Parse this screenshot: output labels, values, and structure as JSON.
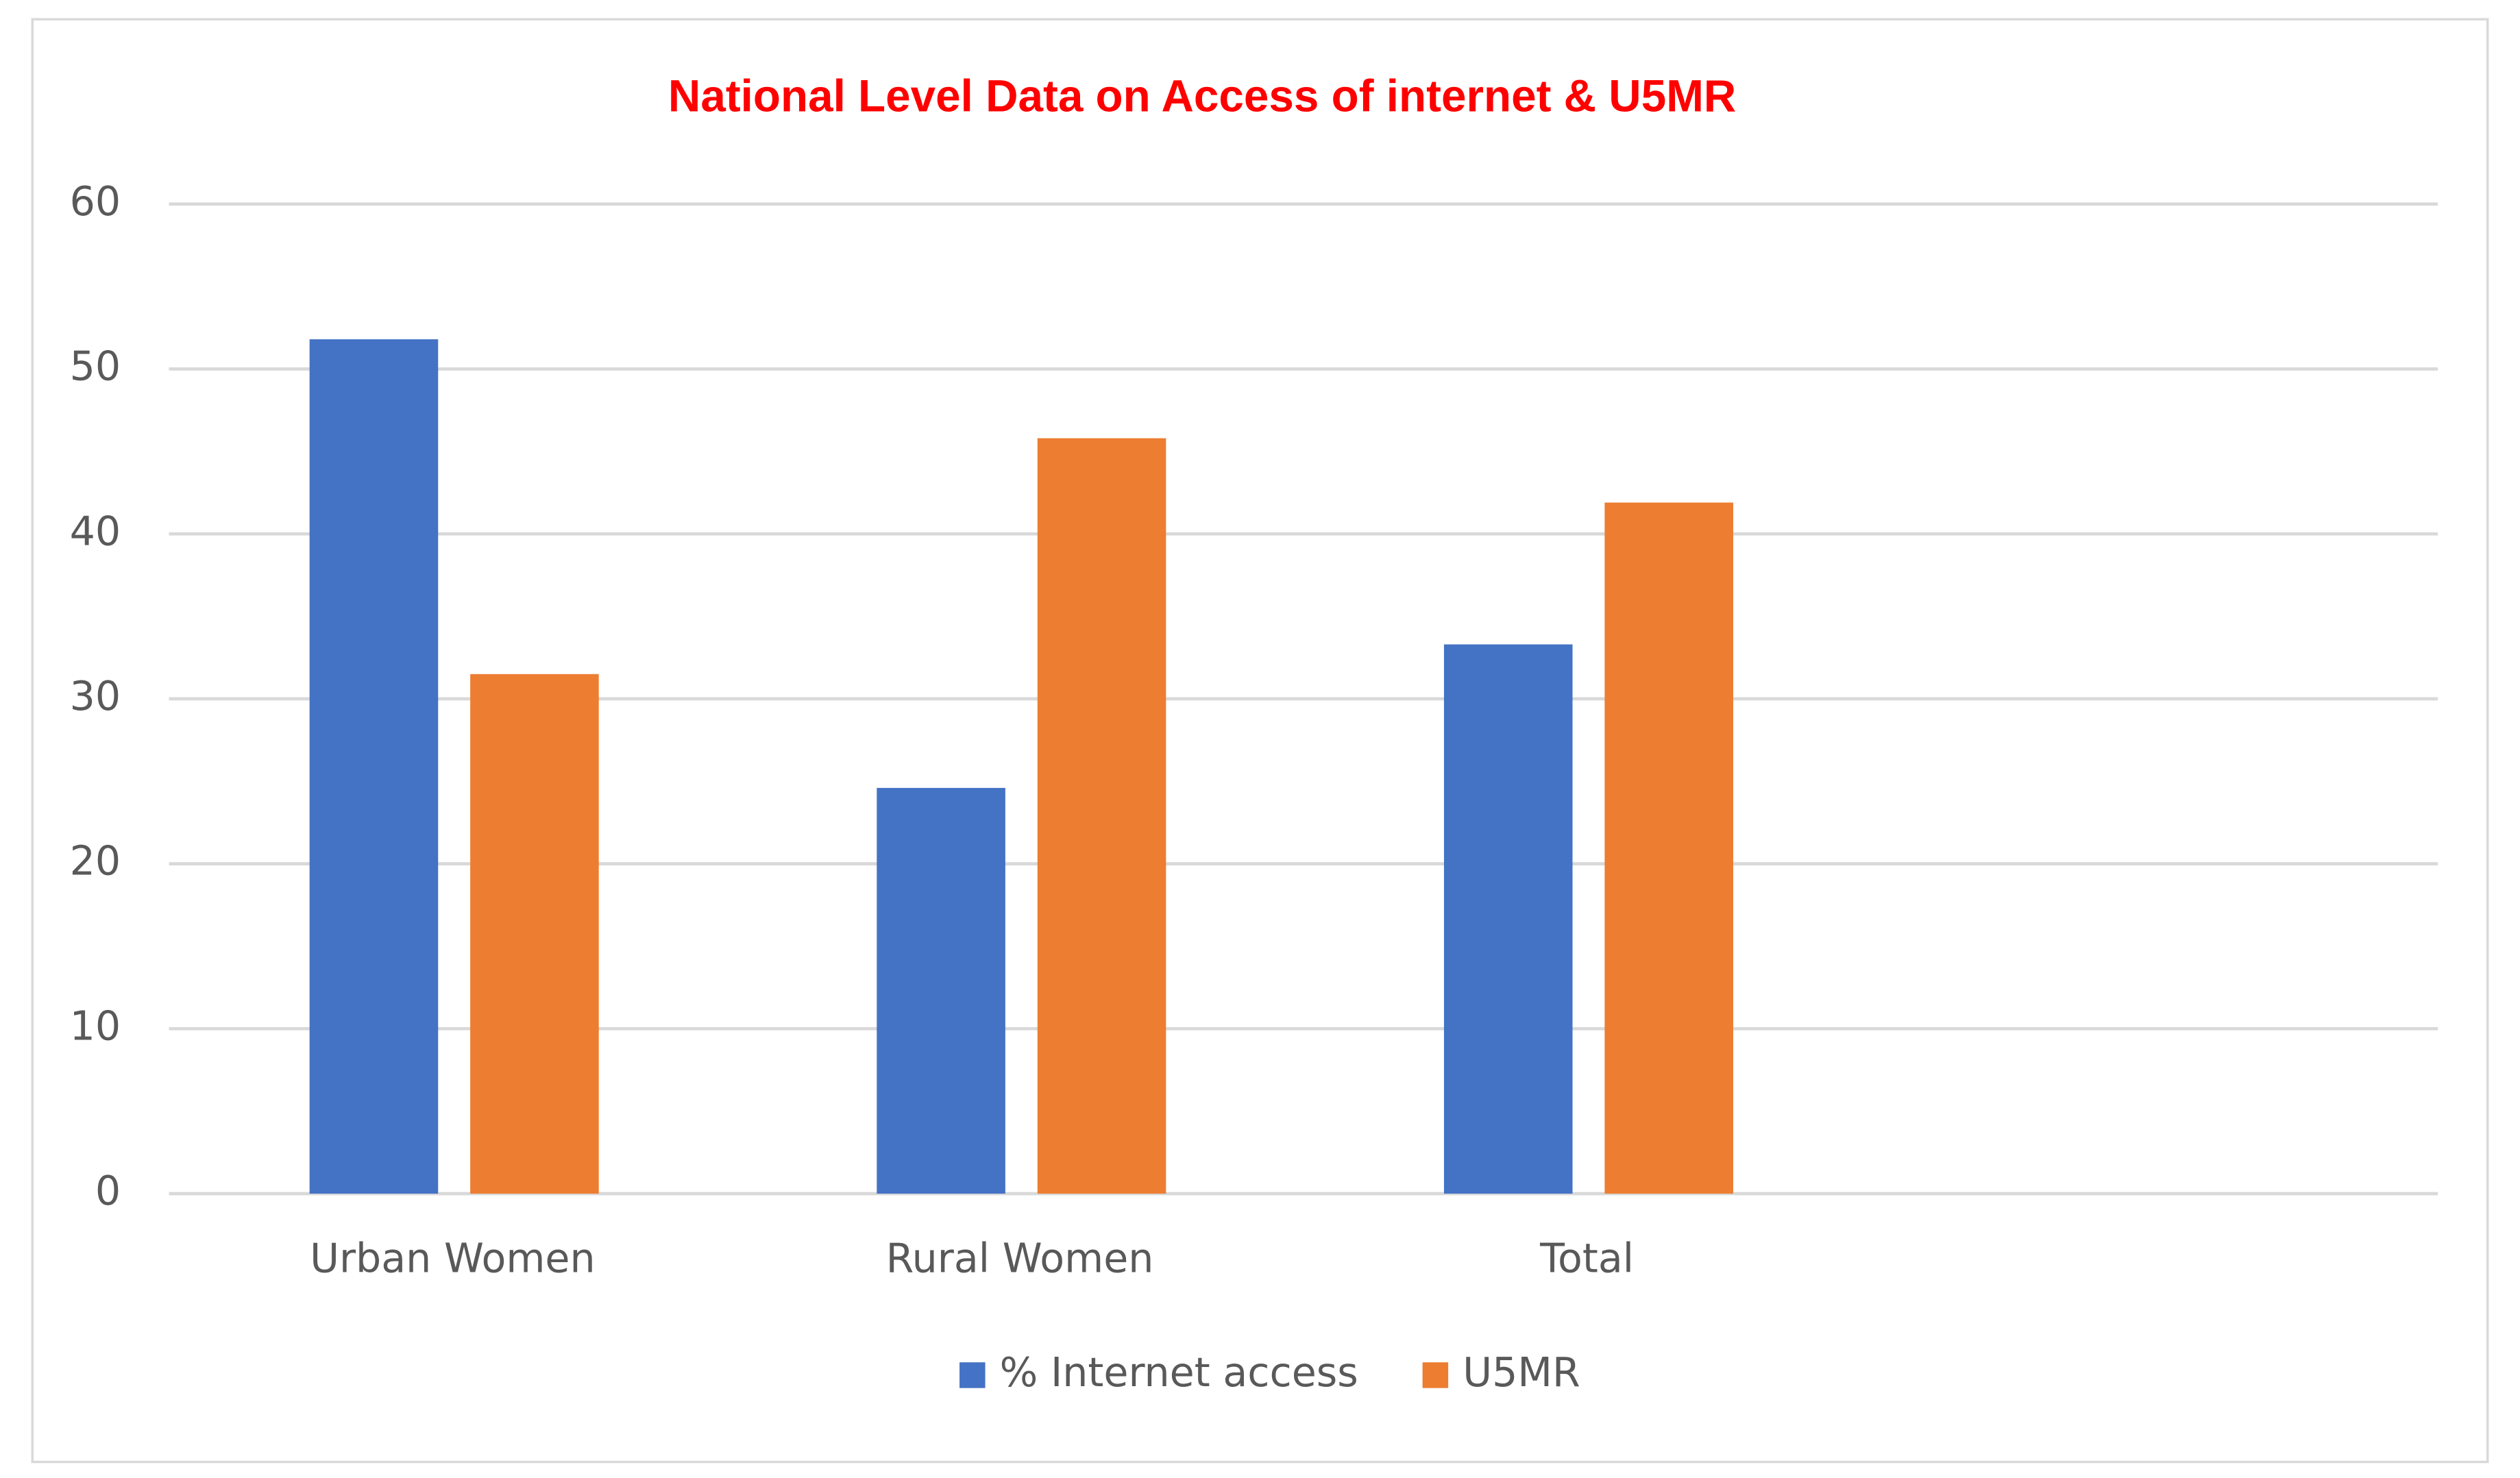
{
  "chart_data": {
    "type": "bar",
    "title": "National Level Data on Access of internet  & U5MR",
    "categories": [
      "Urban Women",
      "Rural Women",
      "Total",
      null
    ],
    "series": [
      {
        "name": "% Internet access",
        "color": "#4472c4",
        "values": [
          51.8,
          24.6,
          33.3,
          null
        ]
      },
      {
        "name": "U5MR",
        "color": "#ed7d31",
        "values": [
          31.5,
          45.8,
          41.9,
          null
        ]
      }
    ],
    "ylim": [
      0,
      60
    ],
    "yticks": [
      0,
      10,
      20,
      30,
      40,
      50,
      60
    ],
    "grid": true,
    "legend": "bottom"
  }
}
